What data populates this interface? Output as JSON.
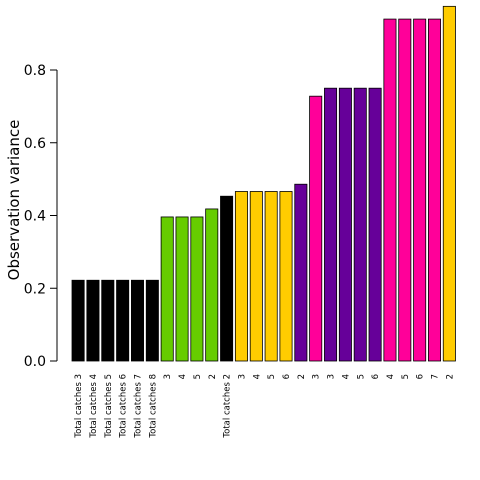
{
  "chart_data": {
    "type": "bar",
    "title": "",
    "xlabel": "",
    "ylabel": "Observation variance",
    "ylim": [
      0,
      0.98
    ],
    "yticks": [
      0.0,
      0.2,
      0.4,
      0.6,
      0.8
    ],
    "ytick_labels": [
      "0.0",
      "0.2",
      "0.4",
      "0.6",
      "0.8"
    ],
    "grid": false,
    "legend": "none",
    "categories": [
      "Total catches 3",
      "Total catches 4",
      "Total catches 5",
      "Total catches 6",
      "Total catches 7",
      "Total catches 8",
      "3",
      "4",
      "5",
      "2",
      "Total catches 2",
      "3",
      "4",
      "5",
      "6",
      "2",
      "3",
      "3",
      "4",
      "5",
      "6",
      "4",
      "5",
      "6",
      "7",
      "2"
    ],
    "values": [
      0.222,
      0.222,
      0.222,
      0.222,
      0.222,
      0.222,
      0.396,
      0.396,
      0.396,
      0.418,
      0.453,
      0.466,
      0.466,
      0.466,
      0.466,
      0.486,
      0.728,
      0.75,
      0.75,
      0.75,
      0.75,
      0.94,
      0.94,
      0.94,
      0.94,
      0.975
    ],
    "colors": [
      "#000000",
      "#000000",
      "#000000",
      "#000000",
      "#000000",
      "#000000",
      "#66cc00",
      "#66cc00",
      "#66cc00",
      "#66cc00",
      "#000000",
      "#ffcc00",
      "#ffcc00",
      "#ffcc00",
      "#ffcc00",
      "#660099",
      "#ff0099",
      "#660099",
      "#660099",
      "#660099",
      "#660099",
      "#ff0099",
      "#ff0099",
      "#ff0099",
      "#ff0099",
      "#ffcc00"
    ]
  }
}
